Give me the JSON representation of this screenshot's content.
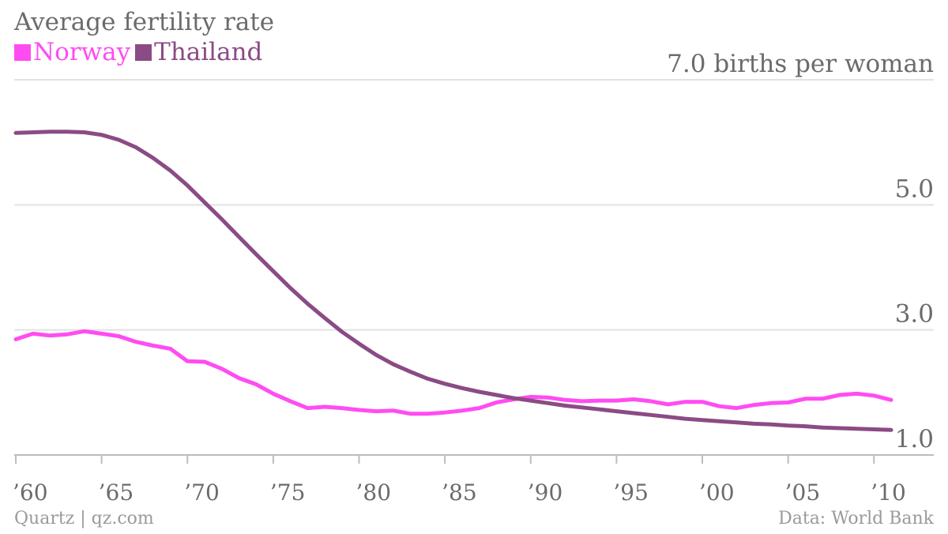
{
  "chart_data": {
    "type": "line",
    "title": "Average fertility rate",
    "y_unit_label": "7.0 births per woman",
    "ylim": [
      1.0,
      7.0
    ],
    "y_ticks": [
      1.0,
      3.0,
      5.0,
      7.0
    ],
    "y_tick_labels": [
      "1.0",
      "3.0",
      "5.0",
      "7.0 births per woman"
    ],
    "x_ticks": [
      1960,
      1965,
      1970,
      1975,
      1980,
      1985,
      1990,
      1995,
      2000,
      2005,
      2010
    ],
    "x_tick_labels": [
      "’60",
      "’65",
      "’70",
      "’75",
      "’80",
      "’85",
      "’90",
      "’95",
      "’00",
      "’05",
      "’10"
    ],
    "xlim": [
      1960,
      2011
    ],
    "grid": true,
    "legend_position": "top-left",
    "x": [
      1960,
      1961,
      1962,
      1963,
      1964,
      1965,
      1966,
      1967,
      1968,
      1969,
      1970,
      1971,
      1972,
      1973,
      1974,
      1975,
      1976,
      1977,
      1978,
      1979,
      1980,
      1981,
      1982,
      1983,
      1984,
      1985,
      1986,
      1987,
      1988,
      1989,
      1990,
      1991,
      1992,
      1993,
      1994,
      1995,
      1996,
      1997,
      1998,
      1999,
      2000,
      2001,
      2002,
      2003,
      2004,
      2005,
      2006,
      2007,
      2008,
      2009,
      2010,
      2011
    ],
    "series": [
      {
        "name": "Norway",
        "color": "#ff4cf2",
        "values": [
          2.85,
          2.94,
          2.91,
          2.93,
          2.98,
          2.94,
          2.9,
          2.81,
          2.75,
          2.7,
          2.5,
          2.49,
          2.38,
          2.23,
          2.13,
          1.98,
          1.86,
          1.75,
          1.77,
          1.75,
          1.72,
          1.7,
          1.71,
          1.66,
          1.66,
          1.68,
          1.71,
          1.75,
          1.84,
          1.89,
          1.93,
          1.92,
          1.88,
          1.86,
          1.87,
          1.87,
          1.89,
          1.86,
          1.81,
          1.85,
          1.85,
          1.78,
          1.75,
          1.8,
          1.83,
          1.84,
          1.9,
          1.9,
          1.96,
          1.98,
          1.95,
          1.88
        ]
      },
      {
        "name": "Thailand",
        "color": "#8b4b84",
        "values": [
          6.15,
          6.16,
          6.17,
          6.17,
          6.16,
          6.12,
          6.04,
          5.92,
          5.75,
          5.55,
          5.31,
          5.04,
          4.77,
          4.49,
          4.21,
          3.94,
          3.67,
          3.42,
          3.19,
          2.97,
          2.78,
          2.6,
          2.45,
          2.33,
          2.22,
          2.14,
          2.07,
          2.01,
          1.96,
          1.91,
          1.87,
          1.83,
          1.79,
          1.76,
          1.73,
          1.7,
          1.67,
          1.64,
          1.61,
          1.58,
          1.56,
          1.54,
          1.52,
          1.5,
          1.49,
          1.47,
          1.46,
          1.44,
          1.43,
          1.42,
          1.41,
          1.4
        ]
      }
    ]
  },
  "footer": {
    "source_left": "Quartz | qz.com",
    "source_right": "Data: World Bank"
  }
}
